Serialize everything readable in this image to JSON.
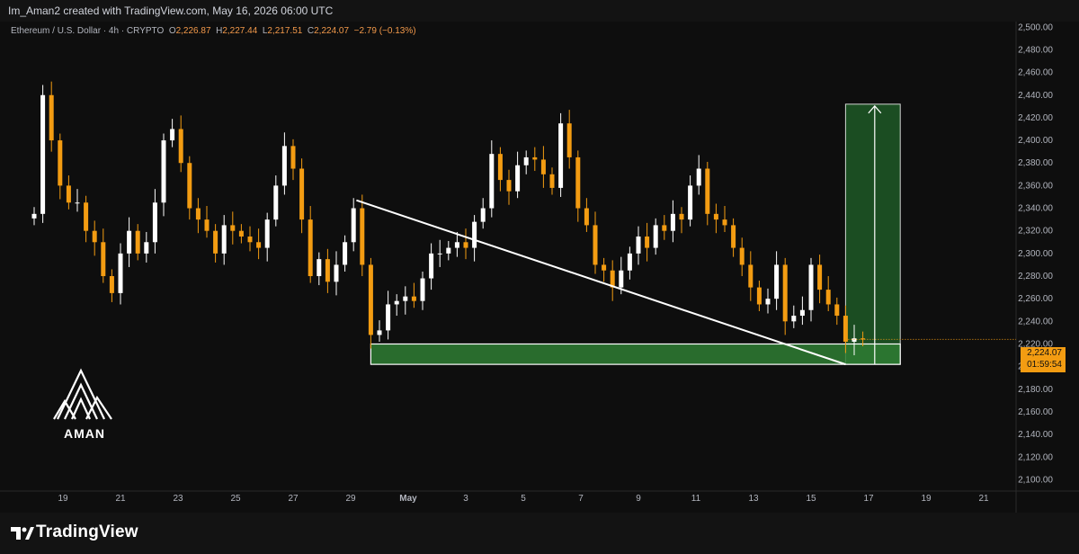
{
  "header": {
    "credit": "Im_Aman2 created with TradingView.com, May 16, 2026 06:00 UTC"
  },
  "legend": {
    "symbol": "Ethereum / U.S. Dollar · 4h · CRYPTO",
    "o_label": "O",
    "o_value": "2,226.87",
    "h_label": "H",
    "h_value": "2,227.44",
    "l_label": "L",
    "l_value": "2,217.51",
    "c_label": "C",
    "c_value": "2,224.07",
    "change": "−2.79 (−0.13%)"
  },
  "price_tag": {
    "price": "2,224.07",
    "countdown": "01:59:54"
  },
  "watermark": {
    "text": "AMAN"
  },
  "footer": {
    "brand": "TradingView"
  },
  "colors": {
    "up": "#ffffff",
    "down": "#f39c12",
    "zone_fill": "#2e7d32",
    "target_fill": "#1b4d22",
    "background": "#0e0e0e"
  },
  "chart_data": {
    "type": "candlestick",
    "interval": "4h",
    "y_axis": {
      "min": 2090,
      "max": 2505,
      "ticks": [
        "2,100.00",
        "2,120.00",
        "2,140.00",
        "2,160.00",
        "2,180.00",
        "2,200.00",
        "2,220.00",
        "2,240.00",
        "2,260.00",
        "2,280.00",
        "2,300.00",
        "2,320.00",
        "2,340.00",
        "2,360.00",
        "2,380.00",
        "2,400.00",
        "2,420.00",
        "2,440.00",
        "2,460.00",
        "2,480.00",
        "2,500.00"
      ],
      "tick_values": [
        2100,
        2120,
        2140,
        2160,
        2180,
        2200,
        2220,
        2240,
        2260,
        2280,
        2300,
        2320,
        2340,
        2360,
        2380,
        2400,
        2420,
        2440,
        2460,
        2480,
        2500
      ]
    },
    "x_axis": {
      "labels": [
        "19",
        "21",
        "23",
        "25",
        "27",
        "29",
        "May",
        "3",
        "5",
        "7",
        "9",
        "11",
        "13",
        "15",
        "17",
        "19",
        "21"
      ],
      "label_days": [
        19,
        21,
        23,
        25,
        27,
        29,
        31,
        33,
        35,
        37,
        39,
        41,
        43,
        45,
        47,
        49,
        51
      ]
    },
    "candles_close_path": [
      [
        18.0,
        2335
      ],
      [
        18.3,
        2440
      ],
      [
        18.6,
        2400
      ],
      [
        18.9,
        2360
      ],
      [
        19.2,
        2345
      ],
      [
        19.5,
        2345
      ],
      [
        19.8,
        2320
      ],
      [
        20.1,
        2310
      ],
      [
        20.4,
        2280
      ],
      [
        20.7,
        2265
      ],
      [
        21.0,
        2300
      ],
      [
        21.3,
        2320
      ],
      [
        21.6,
        2300
      ],
      [
        21.9,
        2310
      ],
      [
        22.2,
        2345
      ],
      [
        22.5,
        2400
      ],
      [
        22.8,
        2410
      ],
      [
        23.1,
        2380
      ],
      [
        23.4,
        2340
      ],
      [
        23.7,
        2330
      ],
      [
        24.0,
        2320
      ],
      [
        24.3,
        2300
      ],
      [
        24.6,
        2325
      ],
      [
        24.9,
        2320
      ],
      [
        25.2,
        2315
      ],
      [
        25.5,
        2310
      ],
      [
        25.8,
        2305
      ],
      [
        26.1,
        2330
      ],
      [
        26.4,
        2360
      ],
      [
        26.7,
        2395
      ],
      [
        27.0,
        2375
      ],
      [
        27.3,
        2330
      ],
      [
        27.6,
        2280
      ],
      [
        27.9,
        2295
      ],
      [
        28.2,
        2275
      ],
      [
        28.5,
        2290
      ],
      [
        28.8,
        2310
      ],
      [
        29.1,
        2340
      ],
      [
        29.4,
        2290
      ],
      [
        29.7,
        2228
      ],
      [
        30.0,
        2232
      ],
      [
        30.3,
        2255
      ],
      [
        30.6,
        2258
      ],
      [
        30.9,
        2262
      ],
      [
        31.2,
        2258
      ],
      [
        31.5,
        2278
      ],
      [
        31.8,
        2300
      ],
      [
        32.1,
        2300
      ],
      [
        32.4,
        2305
      ],
      [
        32.7,
        2310
      ],
      [
        33.0,
        2305
      ],
      [
        33.3,
        2328
      ],
      [
        33.6,
        2340
      ],
      [
        33.9,
        2388
      ],
      [
        34.2,
        2365
      ],
      [
        34.5,
        2355
      ],
      [
        34.8,
        2378
      ],
      [
        35.1,
        2385
      ],
      [
        35.4,
        2383
      ],
      [
        35.7,
        2370
      ],
      [
        36.0,
        2358
      ],
      [
        36.3,
        2415
      ],
      [
        36.6,
        2385
      ],
      [
        36.9,
        2340
      ],
      [
        37.2,
        2325
      ],
      [
        37.5,
        2290
      ],
      [
        37.8,
        2285
      ],
      [
        38.1,
        2270
      ],
      [
        38.4,
        2285
      ],
      [
        38.7,
        2300
      ],
      [
        39.0,
        2315
      ],
      [
        39.3,
        2305
      ],
      [
        39.6,
        2325
      ],
      [
        39.9,
        2320
      ],
      [
        40.2,
        2335
      ],
      [
        40.5,
        2330
      ],
      [
        40.8,
        2360
      ],
      [
        41.1,
        2375
      ],
      [
        41.4,
        2335
      ],
      [
        41.7,
        2330
      ],
      [
        42.0,
        2325
      ],
      [
        42.3,
        2305
      ],
      [
        42.6,
        2290
      ],
      [
        42.9,
        2270
      ],
      [
        43.2,
        2255
      ],
      [
        43.5,
        2260
      ],
      [
        43.8,
        2290
      ],
      [
        44.1,
        2240
      ],
      [
        44.4,
        2245
      ],
      [
        44.7,
        2250
      ],
      [
        45.0,
        2290
      ],
      [
        45.3,
        2268
      ],
      [
        45.6,
        2255
      ],
      [
        45.9,
        2245
      ],
      [
        46.2,
        2222
      ],
      [
        46.5,
        2225
      ],
      [
        46.8,
        2224
      ]
    ],
    "support_zone": {
      "y_top": 2220,
      "y_bottom": 2202,
      "x_start_day": 29.7,
      "x_end_day": 48.1
    },
    "target_box": {
      "y_top": 2432,
      "y_bottom": 2202,
      "x_start_day": 46.2,
      "x_end_day": 48.1
    },
    "trendline": {
      "start": [
        29.2,
        2347
      ],
      "end": [
        46.2,
        2202
      ]
    },
    "last_price": 2224.07
  }
}
